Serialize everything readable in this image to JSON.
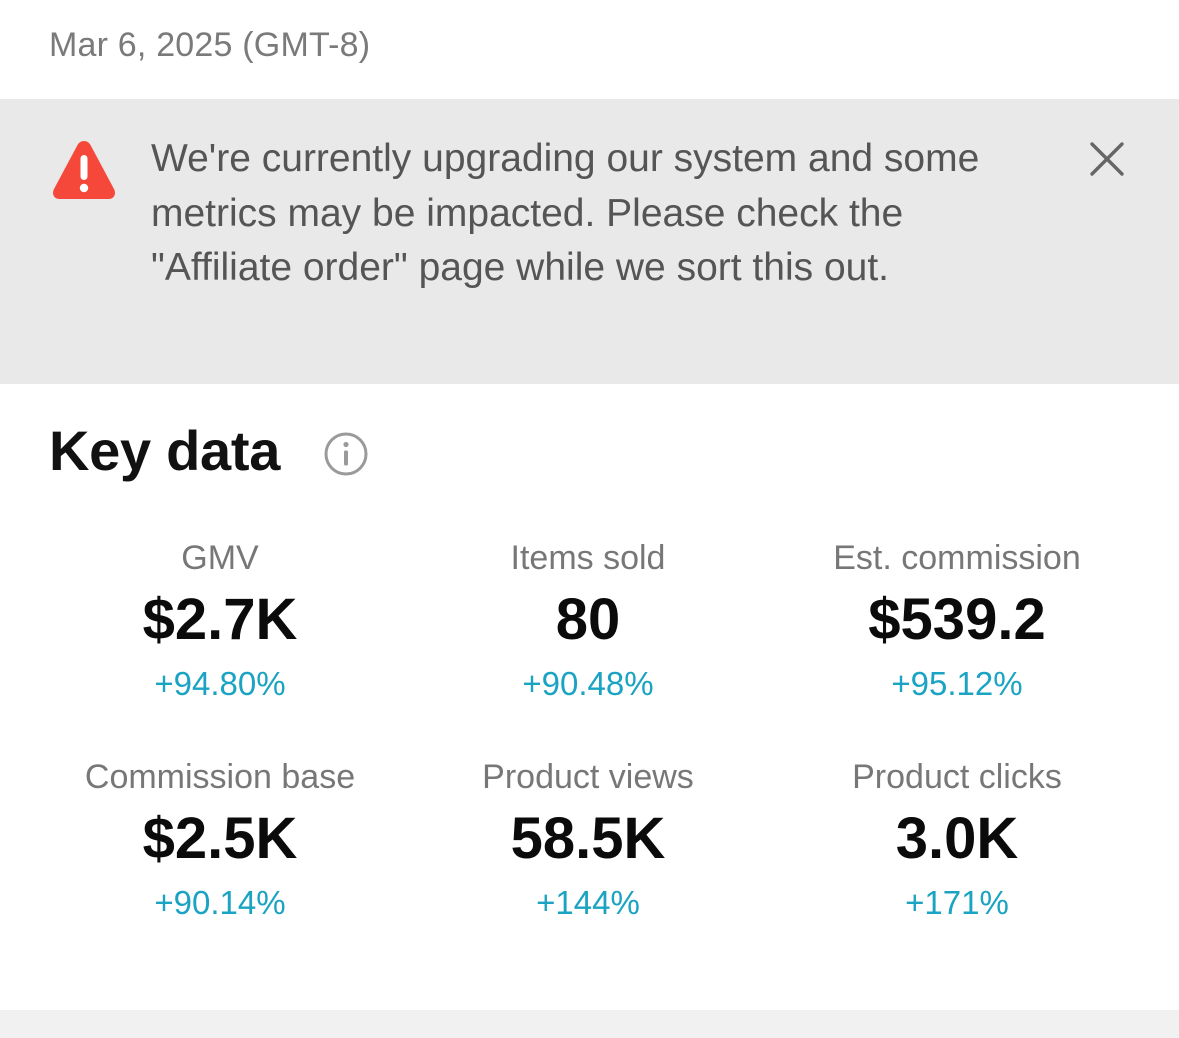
{
  "header": {
    "date": "Mar 6, 2025 (GMT-8)"
  },
  "banner": {
    "message": "We're currently upgrading our system and some metrics may be impacted. Please check the \"Affiliate order\" page while we sort this out.",
    "icon": "warning-triangle-icon",
    "close_icon": "close-icon",
    "background": "#e9e9e9",
    "icon_color": "#f5483b"
  },
  "key_data": {
    "title": "Key data",
    "info_icon": "info-icon",
    "change_color": "#1aa3c2",
    "metrics": [
      {
        "label": "GMV",
        "value": "$2.7K",
        "change": "+94.80%"
      },
      {
        "label": "Items sold",
        "value": "80",
        "change": "+90.48%"
      },
      {
        "label": "Est. commission",
        "value": "$539.2",
        "change": "+95.12%"
      },
      {
        "label": "Commission base",
        "value": "$2.5K",
        "change": "+90.14%"
      },
      {
        "label": "Product views",
        "value": "58.5K",
        "change": "+144%"
      },
      {
        "label": "Product clicks",
        "value": "3.0K",
        "change": "+171%"
      }
    ]
  }
}
